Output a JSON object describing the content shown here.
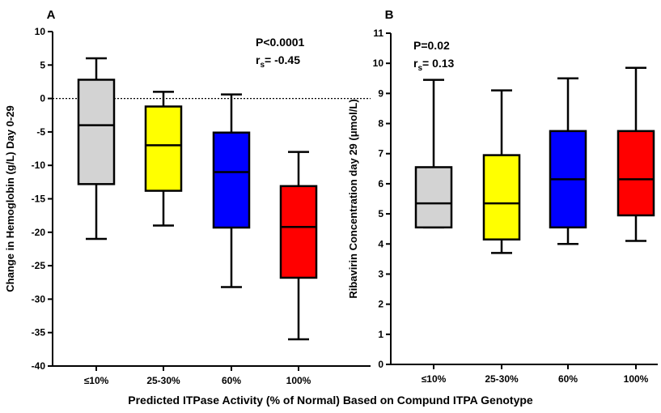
{
  "figure": {
    "shared_xlabel": "Predicted ITPase Activity (% of Normal) Based on Compund ITPA Genotype"
  },
  "chart_data": [
    {
      "type": "box",
      "panel_label": "A",
      "title": "",
      "xlabel": "Predicted ITPase Activity (% of Normal) Based on Compund ITPA Genotype",
      "ylabel": "Change in Hemoglobin (g/L) Day 0-29",
      "ylim": [
        -40,
        10
      ],
      "yticks": [
        10,
        5,
        0,
        -5,
        -10,
        -15,
        -20,
        -25,
        -30,
        -35,
        -40
      ],
      "categories": [
        "≤10%",
        "25-30%",
        "60%",
        "100%"
      ],
      "colors": [
        "#d3d3d3",
        "#ffff00",
        "#0000ff",
        "#ff0000"
      ],
      "boxes": [
        {
          "min": -21,
          "q1": -12.8,
          "median": -4,
          "q3": 2.8,
          "max": 6
        },
        {
          "min": -19,
          "q1": -13.8,
          "median": -7,
          "q3": -1.2,
          "max": 1
        },
        {
          "min": -28.2,
          "q1": -19.3,
          "median": -11,
          "q3": -5.1,
          "max": 0.6
        },
        {
          "min": -36,
          "q1": -26.8,
          "median": -19.2,
          "q3": -13.1,
          "max": -8
        }
      ],
      "reference_line": {
        "y": 0,
        "style": "dotted"
      },
      "stats": {
        "p_text": "P<0.0001",
        "r_prefix": "r",
        "r_sub": "s",
        "r_suffix": "= -0.45"
      }
    },
    {
      "type": "box",
      "panel_label": "B",
      "title": "",
      "xlabel": "Predicted ITPase Activity (% of Normal) Based on Compund ITPA Genotype",
      "ylabel": "Ribavirin Concentration day 29 (μmol/L)",
      "ylim": [
        0,
        11
      ],
      "yticks": [
        11,
        10,
        9,
        8,
        7,
        6,
        5,
        4,
        3,
        2,
        1,
        0
      ],
      "categories": [
        "≤10%",
        "25-30%",
        "60%",
        "100%"
      ],
      "colors": [
        "#d3d3d3",
        "#ffff00",
        "#0000ff",
        "#ff0000"
      ],
      "boxes": [
        {
          "min": 4.55,
          "q1": 4.55,
          "median": 5.35,
          "q3": 6.55,
          "max": 9.45
        },
        {
          "min": 3.7,
          "q1": 4.15,
          "median": 5.35,
          "q3": 6.95,
          "max": 9.1
        },
        {
          "min": 4.0,
          "q1": 4.55,
          "median": 6.15,
          "q3": 7.75,
          "max": 9.5
        },
        {
          "min": 4.1,
          "q1": 4.95,
          "median": 6.15,
          "q3": 7.75,
          "max": 9.85
        }
      ],
      "stats": {
        "p_text": "P=0.02",
        "r_prefix": "r",
        "r_sub": "s",
        "r_suffix": "= 0.13"
      }
    }
  ]
}
